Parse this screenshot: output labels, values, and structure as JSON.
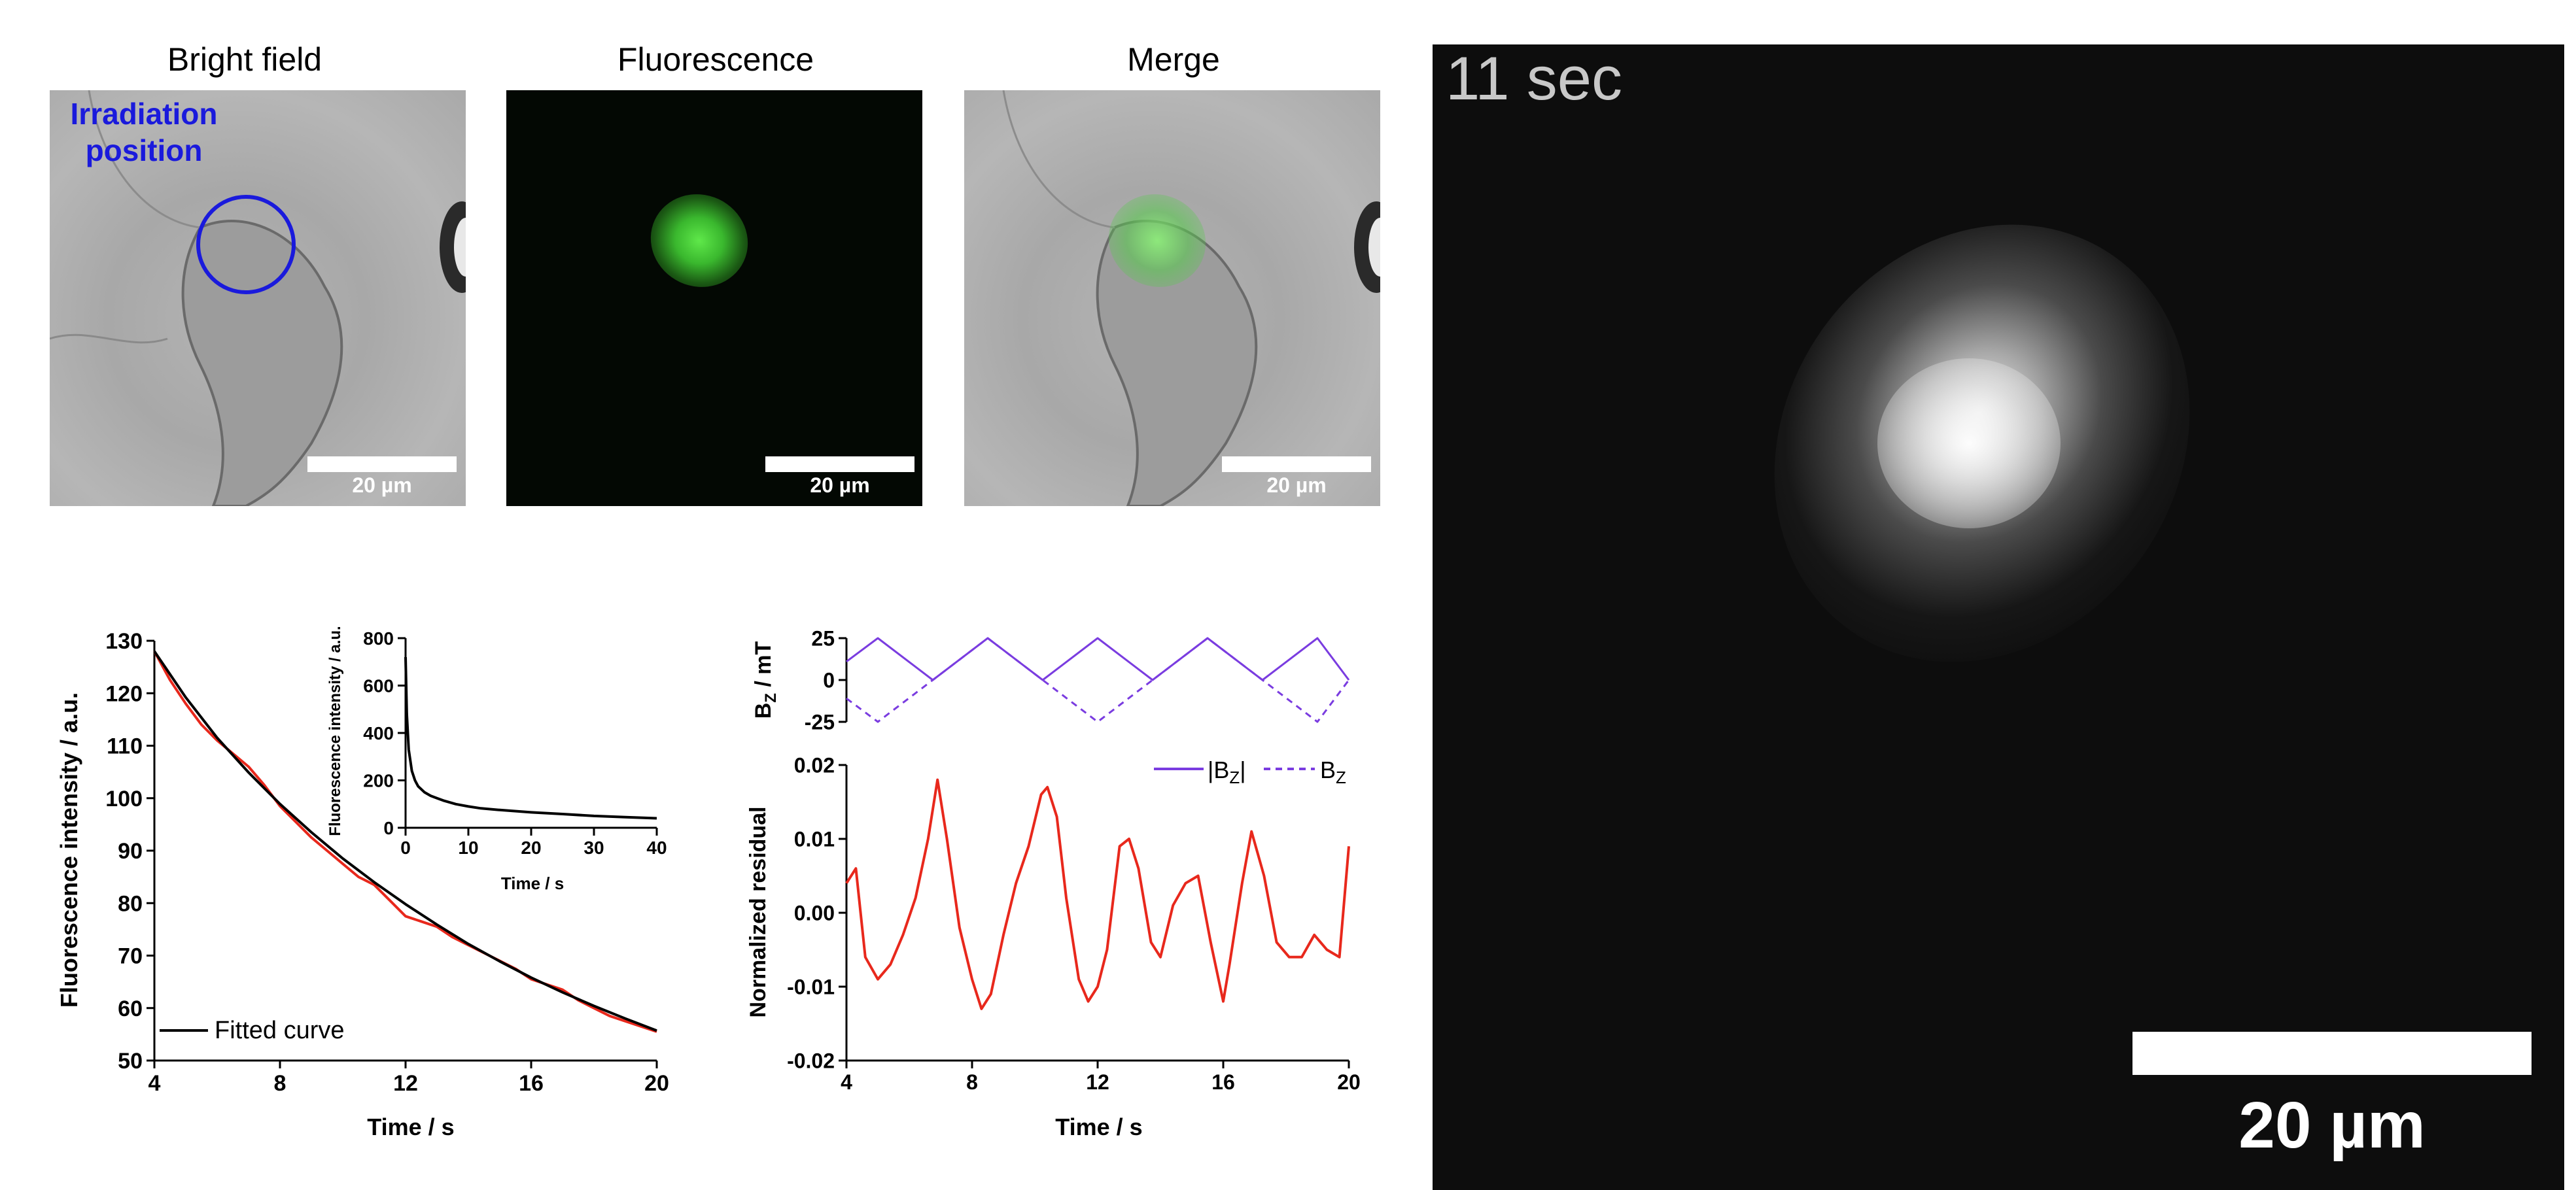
{
  "panels": {
    "bright_field": {
      "title": "Bright field",
      "scale_label": "20 µm",
      "annotation_line1": "Irradiation",
      "annotation_line2": "position"
    },
    "fluorescence": {
      "title": "Fluorescence",
      "scale_label": "20 µm"
    },
    "merge": {
      "title": "Merge",
      "scale_label": "20 µm"
    },
    "live": {
      "time_label": "11 sec",
      "scale_label": "20 µm"
    }
  },
  "colors": {
    "annotation_blue": "#1a1adc",
    "fluor_green": "#46d23c",
    "red_trace": "#e8281c",
    "fit_black": "#000000",
    "field_purple": "#7a3ce0"
  },
  "chart_data": [
    {
      "type": "line",
      "id": "decay",
      "xlabel": "Time / s",
      "ylabel": "Fluorescence intensity / a.u.",
      "xlim": [
        4,
        20
      ],
      "ylim": [
        50,
        130
      ],
      "xticks": [
        4,
        8,
        12,
        16,
        20
      ],
      "yticks": [
        50,
        60,
        70,
        80,
        90,
        100,
        110,
        120,
        130
      ],
      "legend": "bottom-left",
      "series": [
        {
          "name": "Fitted curve",
          "x": [
            4,
            5,
            6,
            7,
            8,
            9,
            10,
            11,
            12,
            13,
            14,
            15,
            16,
            17,
            18,
            19,
            20
          ],
          "y": [
            128,
            119.2,
            111.5,
            104.9,
            98.9,
            93.5,
            88.5,
            84.0,
            79.8,
            75.9,
            72.2,
            68.9,
            65.8,
            63.0,
            60.4,
            58.0,
            55.7
          ]
        },
        {
          "x": [
            4,
            4.5,
            5,
            5.5,
            6,
            6.5,
            7,
            7.5,
            8,
            8.5,
            9,
            9.5,
            10,
            10.5,
            11,
            11.5,
            12,
            12.5,
            13,
            13.5,
            14,
            14.5,
            15,
            15.5,
            16,
            16.5,
            17,
            17.5,
            18,
            18.5,
            19,
            19.5,
            20
          ],
          "y": [
            128,
            122.5,
            118,
            114,
            111,
            108.5,
            106,
            102.5,
            98.5,
            95.5,
            92.5,
            90,
            87.5,
            85,
            83.5,
            80.5,
            77.5,
            76.5,
            75.5,
            73.5,
            72,
            70.5,
            69,
            67.5,
            65.5,
            64.5,
            63.5,
            61.5,
            60,
            58.5,
            57.5,
            56.5,
            55.5
          ]
        }
      ]
    },
    {
      "type": "line",
      "id": "decay_inset",
      "xlabel": "Time / s",
      "ylabel": "Fluorescence intensity / a.u.",
      "xlim": [
        0,
        40
      ],
      "ylim": [
        0,
        800
      ],
      "xticks": [
        0,
        10,
        20,
        30,
        40
      ],
      "yticks": [
        0,
        200,
        400,
        600,
        800
      ],
      "series": [
        {
          "x": [
            0,
            0.2,
            0.5,
            1,
            1.5,
            2,
            3,
            4,
            5,
            6,
            8,
            10,
            12,
            15,
            20,
            25,
            30,
            35,
            40
          ],
          "y": [
            720,
            480,
            330,
            240,
            200,
            175,
            150,
            135,
            125,
            115,
            100,
            90,
            82,
            75,
            65,
            58,
            50,
            45,
            40
          ]
        }
      ]
    },
    {
      "type": "line",
      "id": "field",
      "xlabel": "Time / s",
      "ylabel": "Bz / mT",
      "xlim": [
        4,
        20
      ],
      "ylim": [
        -25,
        25
      ],
      "yticks": [
        25,
        0,
        -25
      ],
      "legend": "top-right",
      "series": [
        {
          "name": "|Bz|",
          "x": [
            4,
            5,
            6.75,
            8.5,
            10.25,
            12,
            13.75,
            15.5,
            17.25,
            19,
            20
          ],
          "y": [
            11,
            25,
            0,
            25,
            0,
            25,
            0,
            25,
            0,
            25,
            0
          ]
        },
        {
          "name": "Bz",
          "x": [
            4,
            5,
            6.75,
            8.5,
            10.25,
            12,
            13.75,
            15.5,
            17.25,
            19,
            20
          ],
          "y": [
            -11,
            -25,
            0,
            25,
            0,
            -25,
            0,
            25,
            0,
            -25,
            0
          ]
        }
      ]
    },
    {
      "type": "line",
      "id": "residual",
      "xlabel": "Time / s",
      "ylabel": "Normalized residual",
      "xlim": [
        4,
        20
      ],
      "ylim": [
        -0.02,
        0.02
      ],
      "xticks": [
        4,
        8,
        12,
        16,
        20
      ],
      "yticks": [
        -0.02,
        -0.01,
        0.0,
        0.01,
        0.02
      ],
      "ytick_labels": [
        "-0.02",
        "-0.01",
        "0.00",
        "0.01",
        "0.02"
      ],
      "series": [
        {
          "x": [
            4,
            4.3,
            4.6,
            5,
            5.4,
            5.8,
            6.2,
            6.6,
            6.9,
            7.2,
            7.6,
            8,
            8.3,
            8.6,
            9,
            9.4,
            9.8,
            10.2,
            10.4,
            10.7,
            11,
            11.4,
            11.7,
            12,
            12.3,
            12.7,
            13,
            13.3,
            13.7,
            14,
            14.4,
            14.8,
            15.2,
            15.6,
            16,
            16.2,
            16.6,
            16.9,
            17.3,
            17.7,
            18.1,
            18.5,
            18.9,
            19.3,
            19.7,
            20
          ],
          "y": [
            0.004,
            0.006,
            -0.006,
            -0.009,
            -0.007,
            -0.003,
            0.002,
            0.01,
            0.018,
            0.01,
            -0.002,
            -0.009,
            -0.013,
            -0.011,
            -0.003,
            0.004,
            0.009,
            0.016,
            0.017,
            0.013,
            0.002,
            -0.009,
            -0.012,
            -0.01,
            -0.005,
            0.009,
            0.01,
            0.006,
            -0.004,
            -0.006,
            0.001,
            0.004,
            0.005,
            -0.004,
            -0.012,
            -0.007,
            0.004,
            0.011,
            0.005,
            -0.004,
            -0.006,
            -0.006,
            -0.003,
            -0.005,
            -0.006,
            0.009
          ]
        }
      ]
    }
  ]
}
